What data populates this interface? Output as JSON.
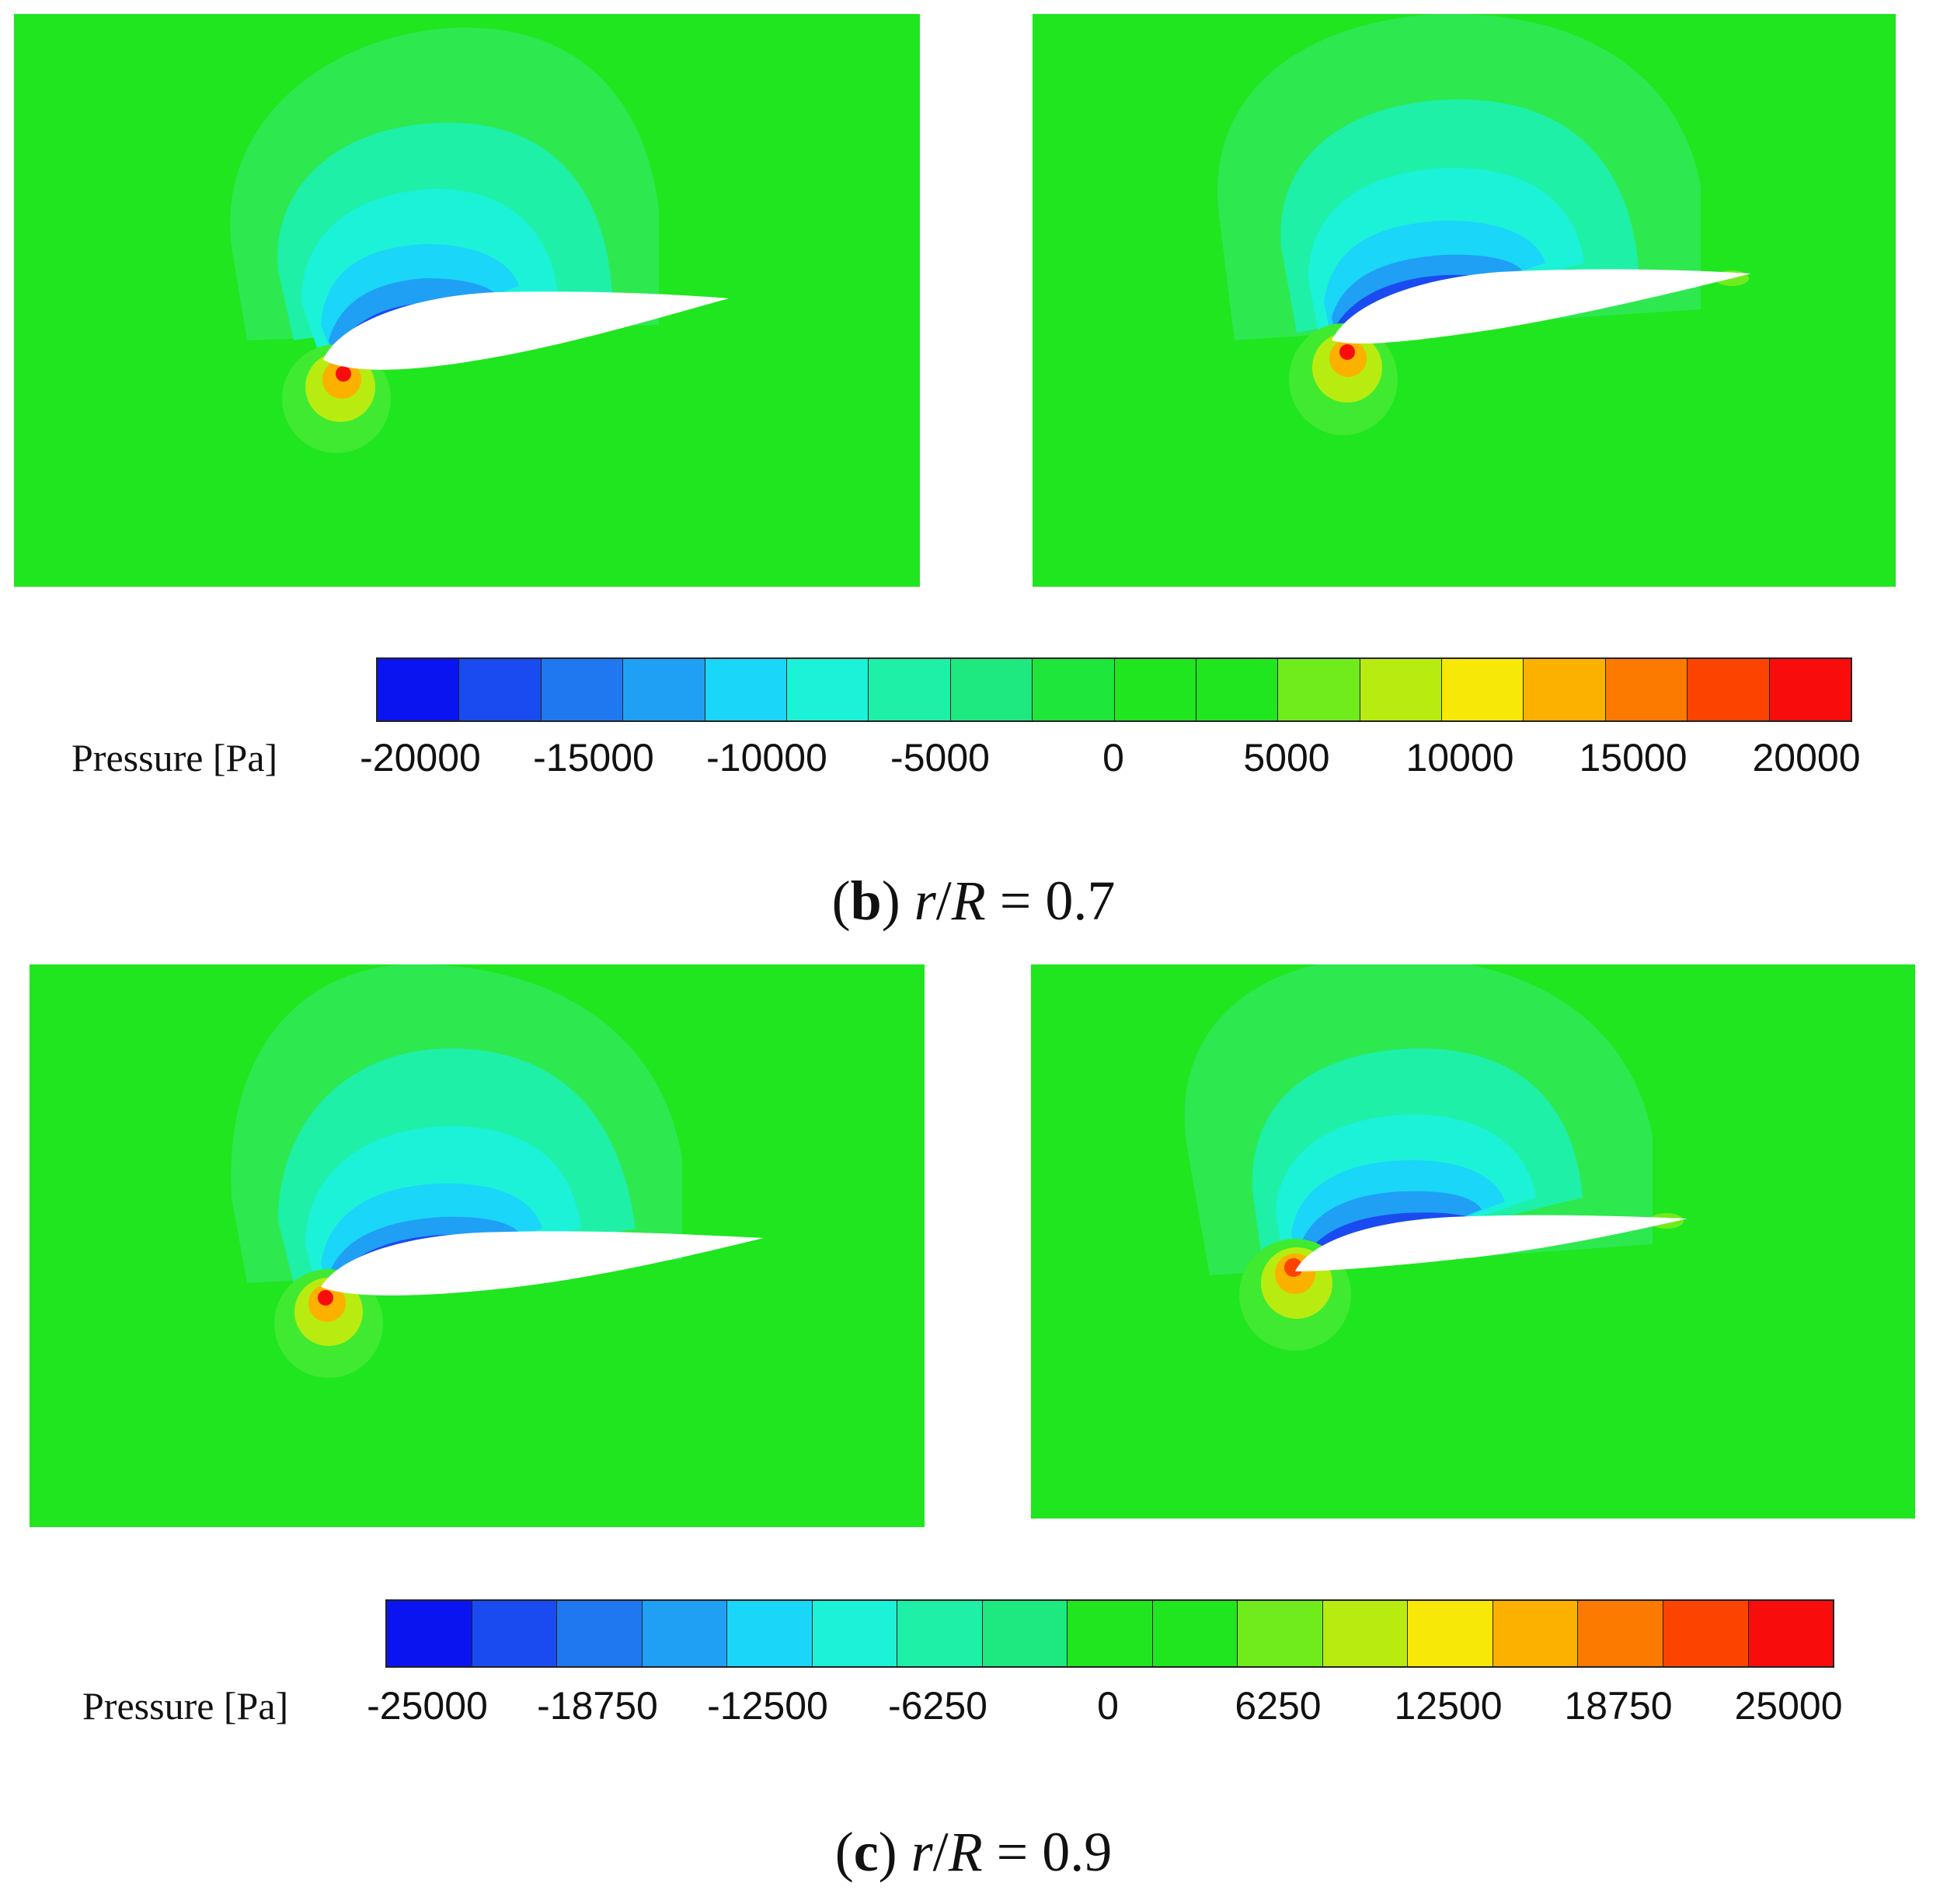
{
  "figures": [
    {
      "colorbar_title": "Pressure [Pa]",
      "ticks": [
        "-20000",
        "-15000",
        "-10000",
        "-5000",
        "0",
        "5000",
        "10000",
        "15000",
        "20000"
      ],
      "caption": {
        "label": "b",
        "var_r": "r",
        "var_R": "R",
        "value": "0.7"
      }
    },
    {
      "colorbar_title": "Pressure [Pa]",
      "ticks": [
        "-25000",
        "-18750",
        "-12500",
        "-6250",
        "0",
        "6250",
        "12500",
        "18750",
        "25000"
      ],
      "caption": {
        "label": "c",
        "var_r": "r",
        "var_R": "R",
        "value": "0.9"
      }
    }
  ],
  "colormap": [
    "#0a14f0",
    "#1a4bf0",
    "#1f78f0",
    "#1fa0f4",
    "#1ad6f8",
    "#1cf2d8",
    "#1ef0a8",
    "#1ee880",
    "#1fe63a",
    "#1fe61f",
    "#20e61f",
    "#70ec1c",
    "#b8ec10",
    "#f8e808",
    "#fcb000",
    "#fc7a00",
    "#fc4400",
    "#f80c0c"
  ],
  "background_color": "#1fe61f"
}
